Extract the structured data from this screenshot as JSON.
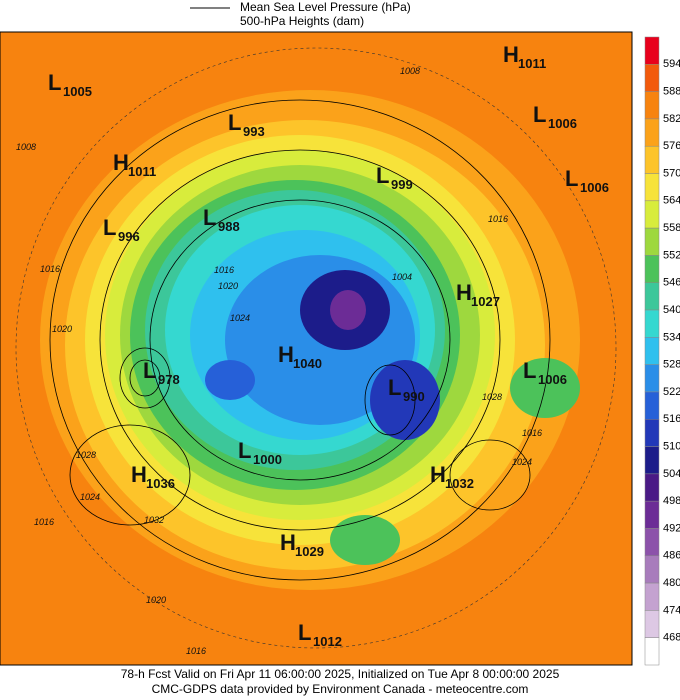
{
  "header": {
    "legend": [
      "Mean Sea Level Pressure (hPa)",
      "500-hPa Heights (dam)"
    ]
  },
  "colorbar": {
    "labels": [
      594,
      588,
      582,
      576,
      570,
      564,
      558,
      552,
      546,
      540,
      534,
      528,
      522,
      516,
      510,
      504,
      498,
      492,
      486,
      480,
      474,
      468
    ],
    "colors": [
      "#e8001c",
      "#f25a0c",
      "#f7830f",
      "#fba21a",
      "#fdc42a",
      "#f7e33a",
      "#d8ec3c",
      "#9ed83e",
      "#4cc25a",
      "#3cc79a",
      "#35d8d0",
      "#2fc0ee",
      "#2a8ee8",
      "#2660d8",
      "#2238b8",
      "#1c1c8a",
      "#4a1a86",
      "#6c2c96",
      "#8c52aa",
      "#a87cbc",
      "#c4a2d0",
      "#ddc8e4",
      "#ffffff"
    ]
  },
  "centers": [
    {
      "letter": "L",
      "value": 1005
    },
    {
      "letter": "H",
      "value": 1011
    },
    {
      "letter": "L",
      "value": 993
    },
    {
      "letter": "L",
      "value": 1006
    },
    {
      "letter": "H",
      "value": 1011
    },
    {
      "letter": "L",
      "value": 999
    },
    {
      "letter": "L",
      "value": 1006
    },
    {
      "letter": "L",
      "value": 996
    },
    {
      "letter": "L",
      "value": 988
    },
    {
      "letter": "H",
      "value": 1027
    },
    {
      "letter": "L",
      "value": 1006
    },
    {
      "letter": "L",
      "value": 978
    },
    {
      "letter": "H",
      "value": 1040
    },
    {
      "letter": "L",
      "value": 990
    },
    {
      "letter": "L",
      "value": 1000
    },
    {
      "letter": "H",
      "value": 1036
    },
    {
      "letter": "H",
      "value": 1032
    },
    {
      "letter": "H",
      "value": 1029
    },
    {
      "letter": "L",
      "value": 1012
    }
  ],
  "contour_labels": [
    1008,
    1016,
    1020,
    1008,
    1016,
    1028,
    1016,
    1024,
    1028,
    1024,
    1016,
    1032,
    1020,
    1016,
    1024,
    1020,
    1016,
    1004
  ],
  "footer": [
    "78-h Fcst Valid on Fri Apr 11 06:00:00 2025, Initialized on Tue Apr  8 00:00:00 2025",
    "CMC-GDPS data provided by Environment Canada - meteocentre.com"
  ]
}
